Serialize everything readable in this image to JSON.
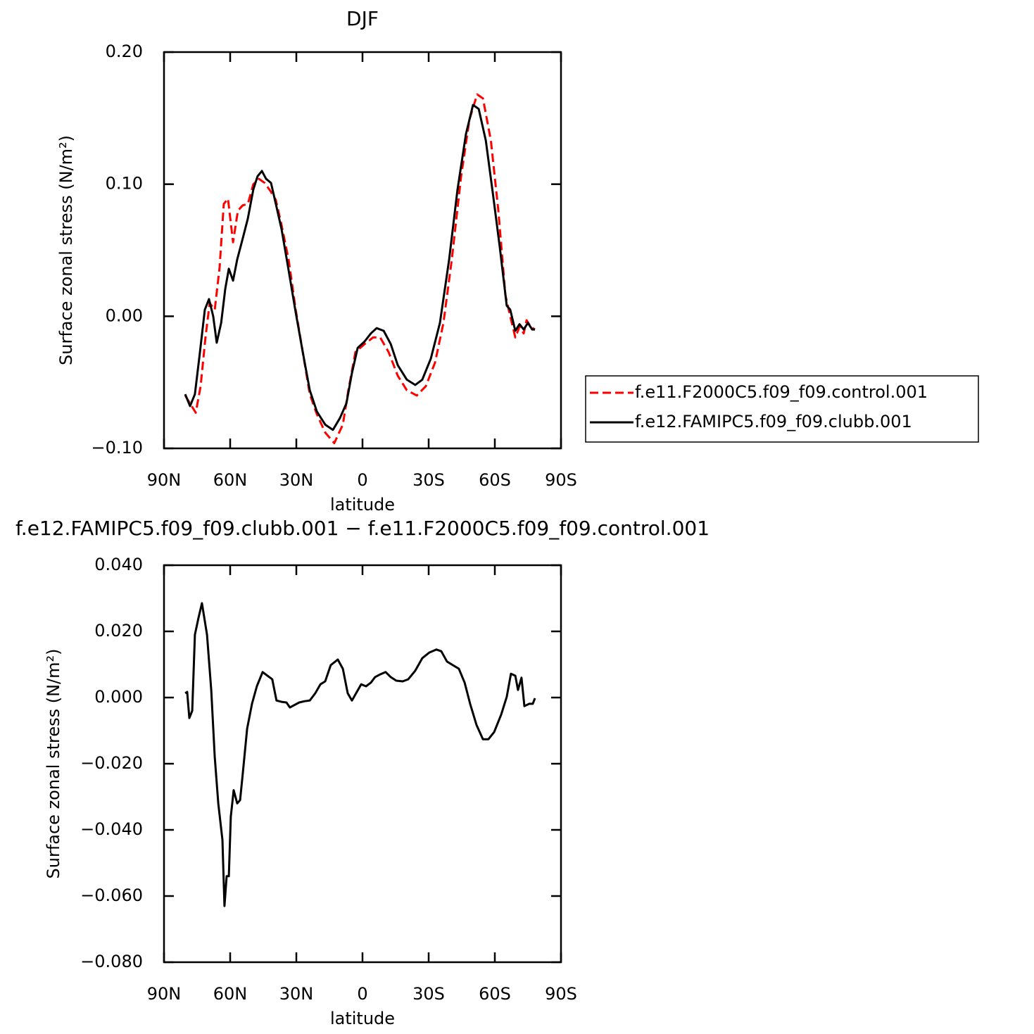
{
  "chart_data": [
    {
      "type": "line",
      "title": "DJF",
      "x_label": "latitude",
      "y_label": "Surface zonal stress (N/m²)",
      "xlim": [
        90,
        -90
      ],
      "xticks": [
        {
          "value": 90,
          "label": "90N"
        },
        {
          "value": 60,
          "label": "60N"
        },
        {
          "value": 30,
          "label": "30N"
        },
        0,
        {
          "value": -30,
          "label": "30S"
        },
        {
          "value": -60,
          "label": "60S"
        },
        {
          "value": -90,
          "label": "90S"
        }
      ],
      "ylim": [
        -0.1,
        0.2
      ],
      "yticks": [
        {
          "value": -0.1,
          "label": "−0.10"
        },
        {
          "value": 0,
          "label": "0.00"
        },
        {
          "value": 0.1,
          "label": "0.10"
        },
        {
          "value": 0.2,
          "label": "0.20"
        }
      ],
      "legend": "right",
      "series": [
        {
          "name": "f.e11.F2000C5.f09_f09.control.001",
          "color": "#ff0000",
          "dash": true,
          "x": [
            80.4,
            78.2,
            75.6,
            73.4,
            71.2,
            69.3,
            67.0,
            64.8,
            62.9,
            61.0,
            58.7,
            56.5,
            54.3,
            52.0,
            49.5,
            46.9,
            44.4,
            41.8,
            39.3,
            36.7,
            33.5,
            30.3,
            27.1,
            23.9,
            20.7,
            16.9,
            12.8,
            8.9,
            6.4,
            3.2,
            -1.0,
            -4.8,
            -8.0,
            -11.8,
            -16.0,
            -20.1,
            -24.6,
            -28.7,
            -32.9,
            -36.7,
            -40.5,
            -44.7,
            -48.5,
            -52.0,
            -54.6,
            -58.2,
            -61.6,
            -64.8,
            -67.0,
            -69.3,
            -71.2,
            -73.1,
            -74.4,
            -76.3,
            -78.2
          ],
          "values": [
            -0.06,
            -0.066,
            -0.073,
            -0.053,
            -0.016,
            0.01,
            0.005,
            0.037,
            0.085,
            0.089,
            0.056,
            0.08,
            0.084,
            0.085,
            0.1,
            0.104,
            0.101,
            0.095,
            0.088,
            0.069,
            0.043,
            0.005,
            -0.027,
            -0.059,
            -0.074,
            -0.088,
            -0.096,
            -0.082,
            -0.056,
            -0.027,
            -0.021,
            -0.016,
            -0.016,
            -0.027,
            -0.045,
            -0.056,
            -0.06,
            -0.053,
            -0.035,
            -0.005,
            0.043,
            0.106,
            0.149,
            0.168,
            0.165,
            0.133,
            0.08,
            0.016,
            0.0,
            -0.016,
            -0.008,
            -0.013,
            -0.003,
            -0.008,
            -0.01
          ]
        },
        {
          "name": "f.e12.FAMIPC5.f09_f09.clubb.001",
          "color": "#000000",
          "dash": false,
          "x": [
            80.4,
            78.2,
            76.0,
            73.7,
            71.5,
            69.6,
            67.7,
            66.1,
            64.1,
            62.2,
            60.6,
            58.7,
            56.8,
            54.3,
            52.0,
            49.5,
            47.6,
            45.6,
            43.7,
            41.5,
            39.3,
            36.7,
            33.5,
            30.3,
            27.1,
            23.9,
            20.7,
            16.9,
            13.4,
            10.2,
            7.3,
            4.8,
            2.2,
            -1.0,
            -3.8,
            -6.4,
            -9.6,
            -12.8,
            -16.0,
            -20.1,
            -23.9,
            -27.1,
            -31.0,
            -35.1,
            -39.3,
            -43.1,
            -46.9,
            -50.1,
            -52.7,
            -55.9,
            -59.1,
            -62.2,
            -65.4,
            -67.0,
            -69.3,
            -71.2,
            -73.1,
            -75.0,
            -76.9,
            -78.2
          ],
          "values": [
            -0.059,
            -0.068,
            -0.059,
            -0.027,
            0.005,
            0.013,
            0.0,
            -0.02,
            -0.005,
            0.021,
            0.036,
            0.027,
            0.043,
            0.059,
            0.074,
            0.096,
            0.106,
            0.11,
            0.104,
            0.101,
            0.085,
            0.066,
            0.035,
            0.003,
            -0.027,
            -0.056,
            -0.072,
            -0.082,
            -0.086,
            -0.077,
            -0.066,
            -0.043,
            -0.024,
            -0.019,
            -0.013,
            -0.009,
            -0.011,
            -0.021,
            -0.037,
            -0.048,
            -0.052,
            -0.048,
            -0.032,
            -0.005,
            0.043,
            0.096,
            0.138,
            0.16,
            0.157,
            0.133,
            0.093,
            0.053,
            0.008,
            0.005,
            -0.011,
            -0.006,
            -0.01,
            -0.005,
            -0.01,
            -0.01
          ]
        }
      ]
    },
    {
      "type": "line",
      "title": "f.e12.FAMIPC5.f09_f09.clubb.001 − f.e11.F2000C5.f09_f09.control.001",
      "x_label": "latitude",
      "y_label": "Surface zonal stress (N/m²)",
      "xlim": [
        90,
        -90
      ],
      "xticks": [
        {
          "value": 90,
          "label": "90N"
        },
        {
          "value": 60,
          "label": "60N"
        },
        {
          "value": 30,
          "label": "30N"
        },
        0,
        {
          "value": -30,
          "label": "30S"
        },
        {
          "value": -60,
          "label": "60S"
        },
        {
          "value": -90,
          "label": "90S"
        }
      ],
      "ylim": [
        -0.08,
        0.04
      ],
      "yticks": [
        {
          "value": -0.08,
          "label": "−0.080"
        },
        {
          "value": -0.06,
          "label": "−0.060"
        },
        {
          "value": -0.04,
          "label": "−0.040"
        },
        {
          "value": -0.02,
          "label": "−0.020"
        },
        {
          "value": 0,
          "label": "0.000"
        },
        {
          "value": 0.02,
          "label": "0.020"
        },
        {
          "value": 0.04,
          "label": "0.040"
        }
      ],
      "series": [
        {
          "color": "#000000",
          "dash": false,
          "x": [
            80.4,
            79.5,
            78.5,
            77.2,
            76.0,
            74.4,
            72.8,
            70.5,
            68.6,
            67.0,
            65.4,
            63.5,
            62.6,
            61.6,
            60.6,
            59.7,
            58.4,
            56.8,
            55.5,
            54.3,
            52.3,
            50.1,
            47.9,
            45.3,
            43.1,
            40.9,
            39.0,
            36.7,
            34.5,
            32.9,
            31.0,
            28.7,
            26.2,
            23.9,
            21.4,
            19.1,
            16.9,
            14.4,
            11.2,
            8.9,
            6.7,
            4.8,
            2.9,
            0.6,
            -1.6,
            -3.8,
            -5.7,
            -8.0,
            -10.5,
            -12.8,
            -15.3,
            -18.2,
            -20.7,
            -23.9,
            -27.1,
            -30.3,
            -33.5,
            -35.7,
            -38.3,
            -40.9,
            -43.7,
            -46.3,
            -48.8,
            -51.7,
            -54.6,
            -57.1,
            -59.7,
            -62.9,
            -65.4,
            -67.3,
            -69.3,
            -70.5,
            -72.1,
            -73.4,
            -75.6,
            -77.2,
            -78.2
          ],
          "values": [
            0.0013,
            0.0017,
            -0.0062,
            -0.004,
            0.019,
            0.024,
            0.0285,
            0.019,
            0.0023,
            -0.018,
            -0.032,
            -0.043,
            -0.063,
            -0.054,
            -0.054,
            -0.036,
            -0.028,
            -0.032,
            -0.031,
            -0.023,
            -0.0094,
            -0.0019,
            0.0034,
            0.0077,
            0.0066,
            0.0055,
            -0.0009,
            -0.0013,
            -0.0015,
            -0.003,
            -0.0023,
            -0.0015,
            -0.0011,
            -0.0009,
            0.0013,
            0.004,
            0.0049,
            0.0098,
            0.0115,
            0.0087,
            0.0013,
            -0.0009,
            0.0013,
            0.004,
            0.0034,
            0.0045,
            0.0062,
            0.007,
            0.0077,
            0.0062,
            0.0051,
            0.0049,
            0.0055,
            0.0081,
            0.0119,
            0.0136,
            0.0145,
            0.014,
            0.0109,
            0.0098,
            0.0087,
            0.0045,
            -0.0019,
            -0.0083,
            -0.0126,
            -0.0126,
            -0.0104,
            -0.0051,
            0.0002,
            0.0072,
            0.0066,
            0.0023,
            0.006,
            -0.0026,
            -0.0019,
            -0.0019,
            -0.0002
          ]
        }
      ]
    }
  ]
}
